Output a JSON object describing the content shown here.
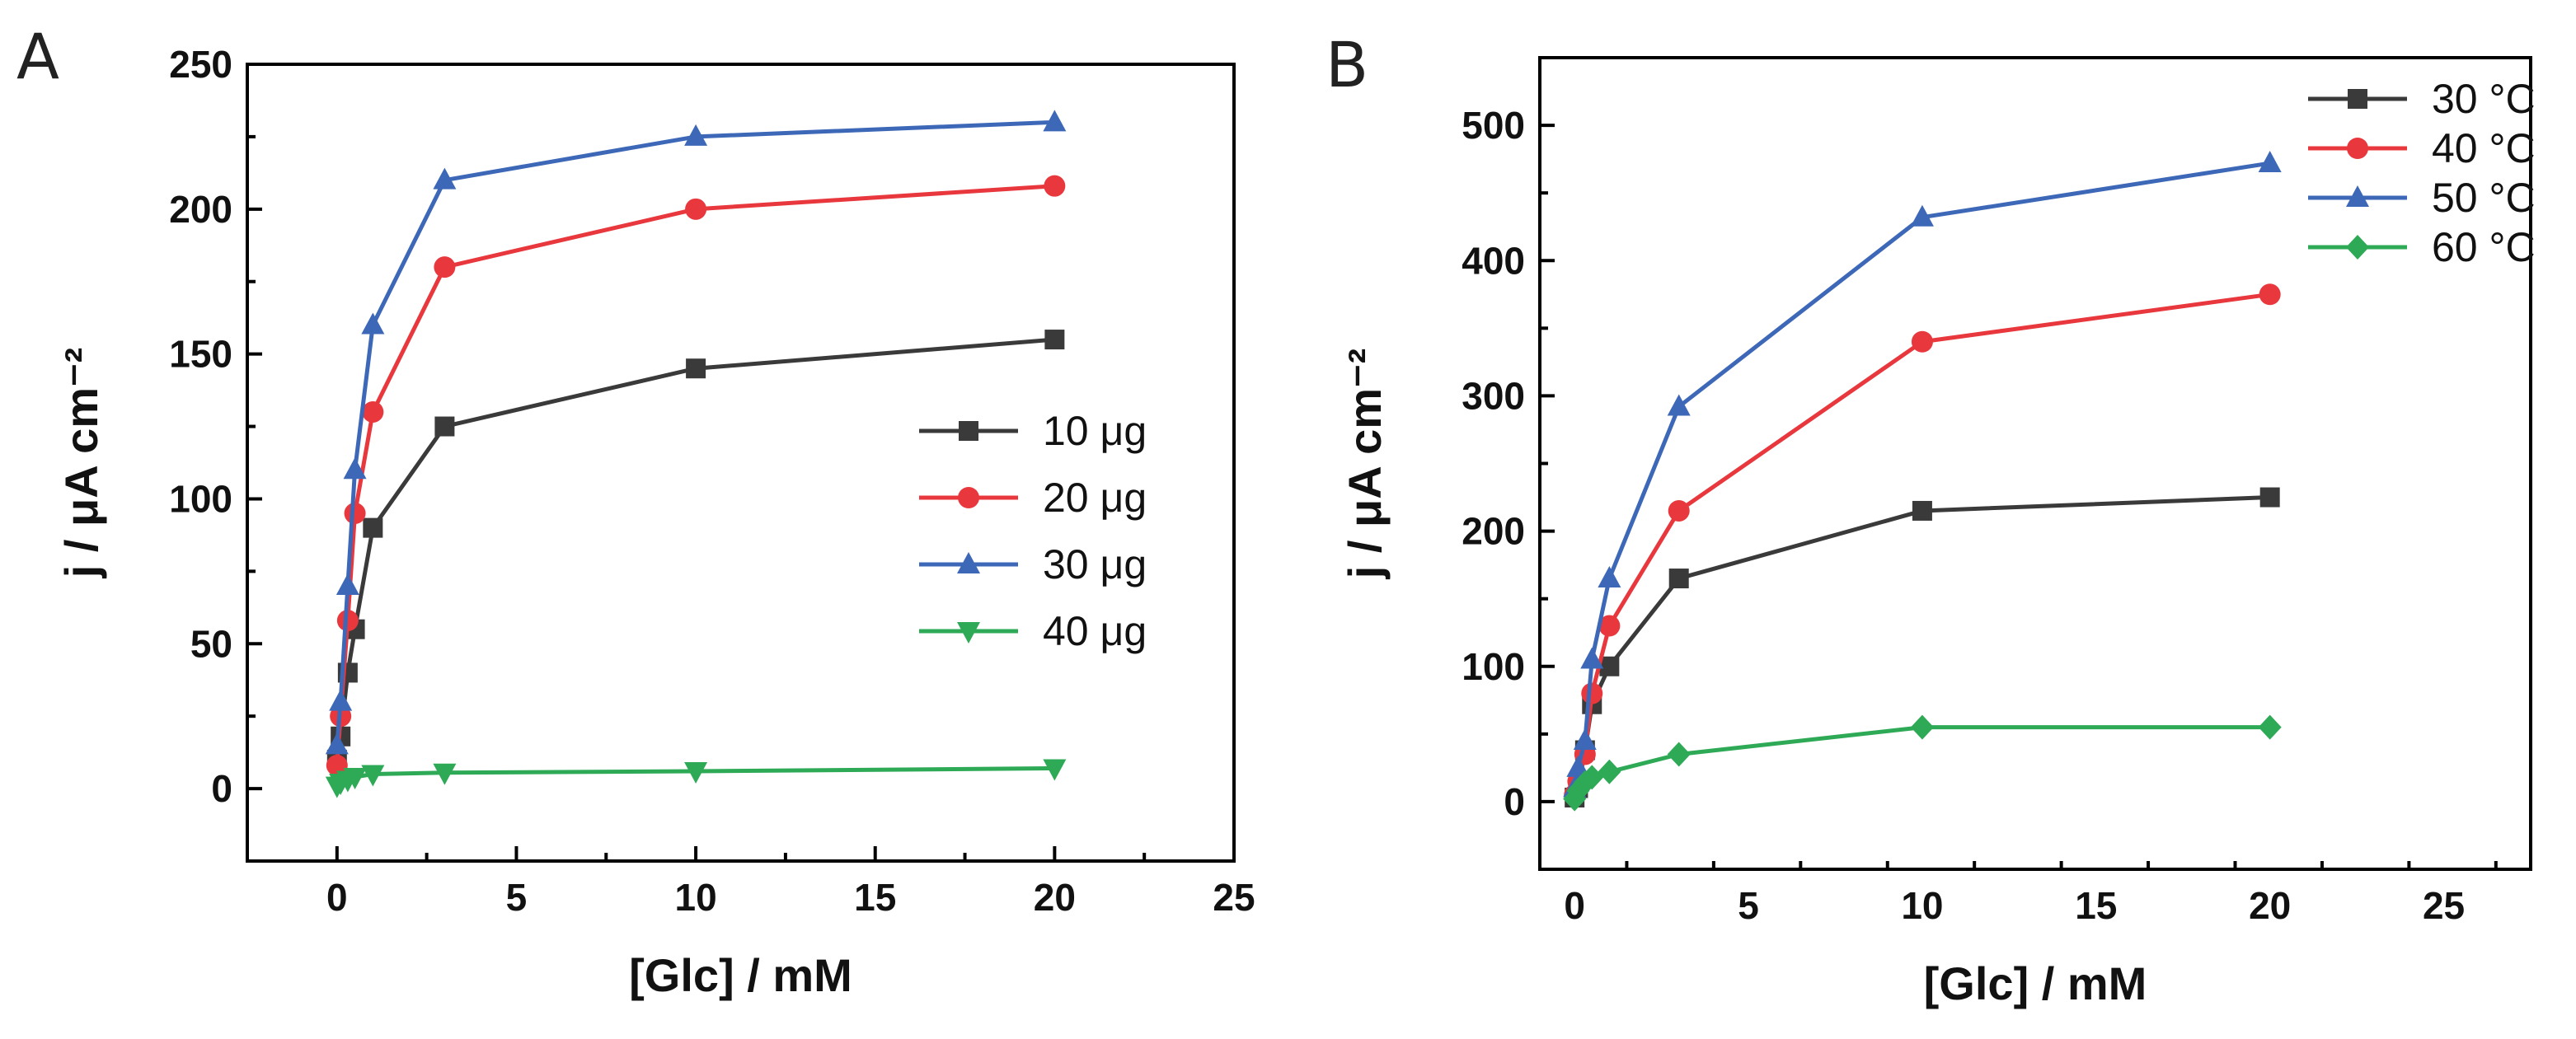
{
  "chart_data": [
    {
      "type": "line",
      "panel_label": "A",
      "xlabel": "[Glc] / mM",
      "ylabel": "j / μA cm⁻²",
      "xlim": [
        -2.5,
        25
      ],
      "ylim": [
        -25,
        250
      ],
      "xticks": [
        0,
        5,
        10,
        15,
        20,
        25
      ],
      "yticks": [
        0,
        50,
        100,
        150,
        200,
        250
      ],
      "legend_position": "center-right",
      "series": [
        {
          "name": "10 μg",
          "color": "#3a3a3a",
          "marker": "square",
          "x": [
            0,
            0.1,
            0.3,
            0.5,
            1,
            3,
            10,
            20
          ],
          "y": [
            10,
            18,
            40,
            55,
            90,
            125,
            145,
            155
          ]
        },
        {
          "name": "20 μg",
          "color": "#e8383d",
          "marker": "circle",
          "x": [
            0,
            0.1,
            0.3,
            0.5,
            1,
            3,
            10,
            20
          ],
          "y": [
            8,
            25,
            58,
            95,
            130,
            180,
            200,
            208
          ]
        },
        {
          "name": "30 μg",
          "color": "#3d68b8",
          "marker": "triangle-up",
          "x": [
            0,
            0.1,
            0.3,
            0.5,
            1,
            3,
            10,
            20
          ],
          "y": [
            15,
            30,
            70,
            110,
            160,
            210,
            225,
            230
          ]
        },
        {
          "name": "40 μg",
          "color": "#2eaa57",
          "marker": "triangle-down",
          "x": [
            0,
            0.1,
            0.3,
            0.5,
            1,
            3,
            10,
            20
          ],
          "y": [
            1,
            2,
            3,
            4,
            5,
            5.5,
            6,
            7
          ]
        }
      ]
    },
    {
      "type": "line",
      "panel_label": "B",
      "xlabel": "[Glc] / mM",
      "ylabel": "j / μA cm⁻²",
      "xlim": [
        -1,
        27.5
      ],
      "ylim": [
        -50,
        550
      ],
      "xticks": [
        0,
        5,
        10,
        15,
        20,
        25
      ],
      "yticks": [
        0,
        100,
        200,
        300,
        400,
        500
      ],
      "legend_position": "top-right",
      "series": [
        {
          "name": "30 °C",
          "color": "#3a3a3a",
          "marker": "square",
          "x": [
            0,
            0.1,
            0.3,
            0.5,
            1,
            3,
            10,
            20
          ],
          "y": [
            3,
            10,
            38,
            72,
            100,
            165,
            215,
            225
          ]
        },
        {
          "name": "40 °C",
          "color": "#e8383d",
          "marker": "circle",
          "x": [
            0,
            0.1,
            0.3,
            0.5,
            1,
            3,
            10,
            20
          ],
          "y": [
            5,
            15,
            35,
            80,
            130,
            215,
            340,
            375
          ]
        },
        {
          "name": "50 °C",
          "color": "#3d68b8",
          "marker": "triangle-up",
          "x": [
            0,
            0.1,
            0.3,
            0.5,
            1,
            3,
            10,
            20
          ],
          "y": [
            10,
            25,
            45,
            105,
            165,
            292,
            432,
            472
          ]
        },
        {
          "name": "60 °C",
          "color": "#2eaa57",
          "marker": "diamond",
          "x": [
            0,
            0.1,
            0.3,
            0.5,
            1,
            3,
            10,
            20
          ],
          "y": [
            2,
            8,
            14,
            18,
            22,
            35,
            55,
            55
          ]
        }
      ]
    }
  ]
}
